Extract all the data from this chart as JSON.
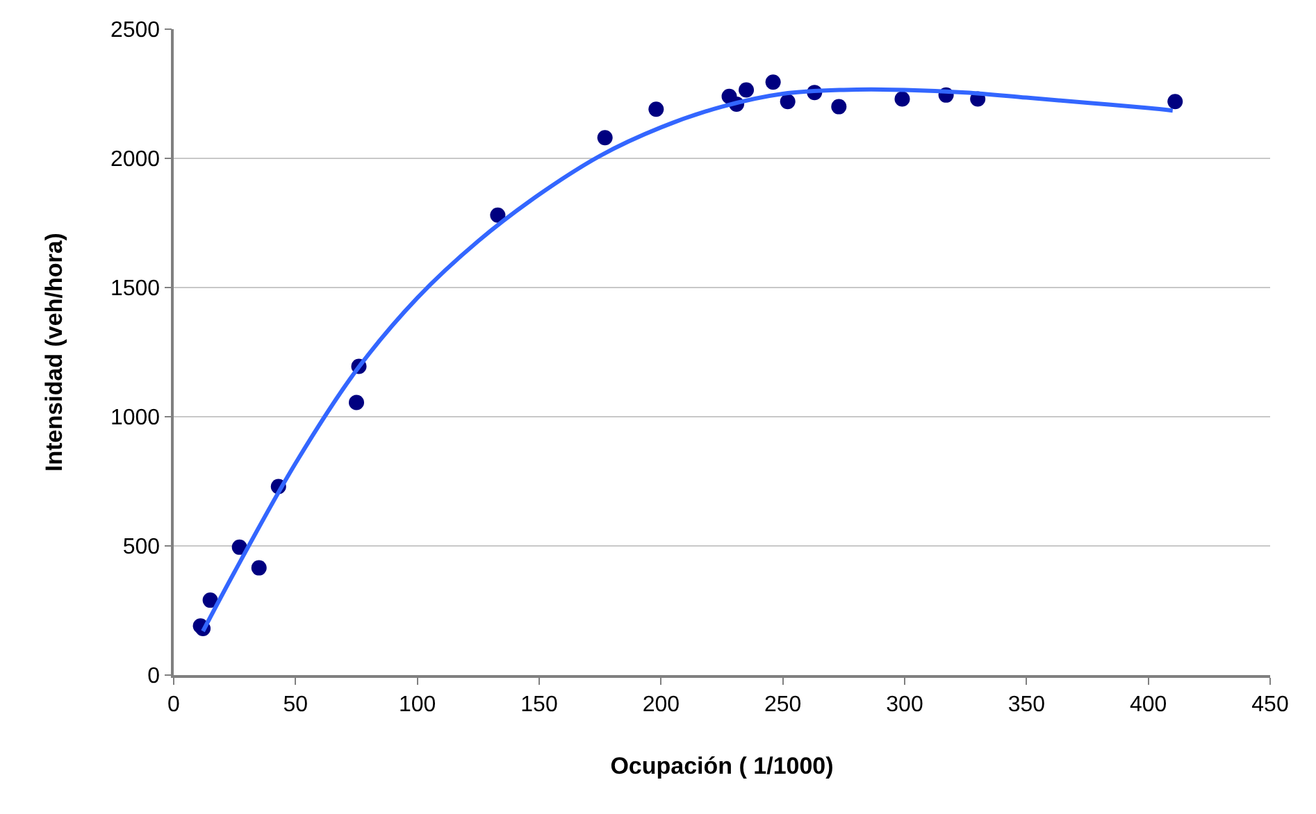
{
  "chart_data": {
    "type": "scatter",
    "xlabel": "Ocupación ( 1/1000)",
    "ylabel": "Intensidad (veh/hora)",
    "xlim": [
      0,
      450
    ],
    "xticks": [
      0,
      50,
      100,
      150,
      200,
      250,
      300,
      350,
      400,
      450
    ],
    "ylim": [
      0,
      2500
    ],
    "yticks": [
      0,
      500,
      1000,
      1500,
      2000,
      2500
    ],
    "grid": "y",
    "series": [
      {
        "marker": "circle",
        "color": "#000080",
        "x": [
          11,
          12,
          15,
          27,
          35,
          43,
          75,
          76,
          133,
          177,
          198,
          228,
          231,
          235,
          246,
          252,
          263,
          273,
          299,
          317,
          330,
          411
        ],
        "values": [
          190,
          180,
          290,
          495,
          415,
          730,
          1055,
          1195,
          1780,
          2080,
          2190,
          2240,
          2210,
          2265,
          2295,
          2220,
          2255,
          2200,
          2230,
          2245,
          2230,
          2220
        ]
      },
      {
        "type": "line",
        "color": "#3366ff",
        "x": [
          12,
          25,
          50,
          75,
          100,
          125,
          150,
          175,
          200,
          225,
          250,
          275,
          300,
          325,
          350,
          375,
          400,
          410
        ],
        "values": [
          170,
          400,
          820,
          1180,
          1460,
          1680,
          1860,
          2010,
          2120,
          2200,
          2250,
          2265,
          2265,
          2255,
          2235,
          2215,
          2195,
          2185
        ]
      }
    ]
  }
}
